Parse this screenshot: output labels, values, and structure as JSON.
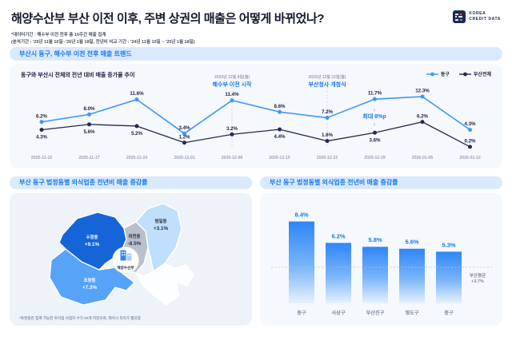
{
  "header": {
    "title": "해양수산부 부산 이전 이후, 주변 상권의 매출은 어떻게 바뀌었나?",
    "note_line1": "*데이터기간 : 해수부 이전 전후 총 10주간 매출 집계",
    "note_line2": "(분석기간 : '25년 11월 10일~'26년 1월 18일, 전년비 비교 기간 : '24년 11월 10일 ~ '25년 1월 18일)",
    "logo": {
      "line1": "KOREA",
      "line2": "CREDIT DATA"
    }
  },
  "trend_section": {
    "header": "부산시 동구, 해수부 이전 전후 매출 트렌드",
    "subtitle": "동구와 부산시 전체의 전년 대비 매출 증가율 추이",
    "annotations": [
      {
        "date": "2025년 12월 8일(월)",
        "label": "해수부 이전 시작",
        "x_index": 4
      },
      {
        "date": "2025년 12월 22일(월)",
        "label": "부산청사 개청식",
        "x_index": 6
      }
    ],
    "gap_annotation": "최대 8%p",
    "chart_data": {
      "type": "line",
      "x": [
        "2025-11-10",
        "2025-11-17",
        "2025-11-24",
        "2025-12-01",
        "2025-12-08",
        "2025-12-15",
        "2025-12-22",
        "2025-12-29",
        "2026-01-05",
        "2026-01-12"
      ],
      "series": [
        {
          "name": "동구",
          "color": "#3E97F7",
          "values": [
            6.2,
            8.0,
            11.6,
            3.4,
            11.4,
            8.6,
            7.2,
            11.7,
            12.3,
            4.3
          ]
        },
        {
          "name": "부산전체",
          "color": "#232A4D",
          "values": [
            4.3,
            5.6,
            5.2,
            1.2,
            3.2,
            4.4,
            1.6,
            3.6,
            6.2,
            0.2
          ]
        }
      ],
      "unit": "%",
      "ylim": [
        0,
        13.5
      ],
      "grid": false,
      "legend_position": "top-right"
    }
  },
  "map_section": {
    "header": "부산 동구 법정동별 외식업종 전년비 매출 증감률",
    "center_badge": "해양수산부",
    "regions": [
      {
        "name": "수정동",
        "value": "+9.1%",
        "color": "#1565D9"
      },
      {
        "name": "초량동",
        "value": "+7.3%",
        "color": "#57A3F8"
      },
      {
        "name": "좌천동",
        "value": "-8.5%",
        "color": "#B7C0CB"
      },
      {
        "name": "범일동",
        "value": "+3.1%",
        "color": "#BFDFFC"
      }
    ],
    "footnote": "*좌천동은 집계 가능한 외식업 사업자 수가 50개 미만으로, 해석시 유의가 필요함"
  },
  "bar_section": {
    "header": "부산 동구 법정동별 외식업종 전년비 매출 증감률",
    "baseline": {
      "label_line1": "부산평균",
      "label_line2": "+3.7%",
      "value": 3.7
    },
    "chart_data": {
      "type": "bar",
      "categories": [
        "동구",
        "사상구",
        "부산진구",
        "영도구",
        "중구"
      ],
      "values": [
        8.4,
        6.2,
        5.8,
        5.6,
        5.3
      ],
      "unit": "%",
      "bar_color_top": "#2E86F6",
      "bar_color_bottom": "#E7F1FD",
      "label_color": "#1877F2"
    }
  }
}
